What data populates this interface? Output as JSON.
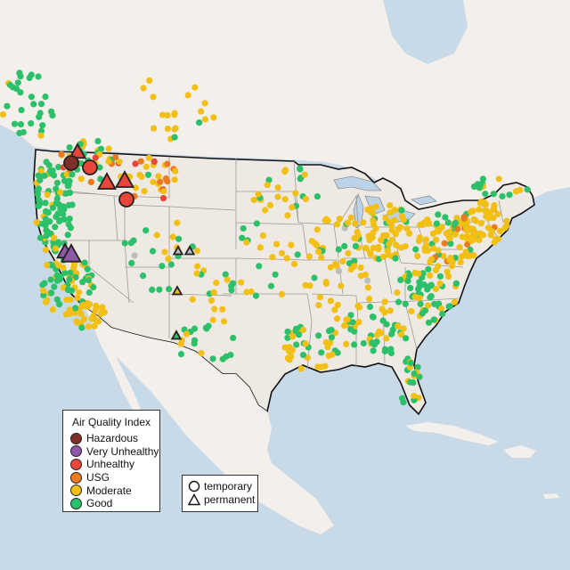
{
  "colors": {
    "ocean": "#c8d9e8",
    "land": "#efe9e4",
    "land_foreign": "#f3efeb",
    "lakes": "#bcd2e6",
    "border": "#111111",
    "state": "#9a9a9a",
    "no_data": "#bdbdbd"
  },
  "legend_aqi": {
    "title": "Air Quality Index",
    "items": [
      {
        "label": "Hazardous",
        "color": "#7e2f2a"
      },
      {
        "label": "Very Unhealthy",
        "color": "#8e58a8"
      },
      {
        "label": "Unhealthy",
        "color": "#e8463b"
      },
      {
        "label": "USG",
        "color": "#ec7a21"
      },
      {
        "label": "Moderate",
        "color": "#f2c015"
      },
      {
        "label": "Good",
        "color": "#2dc06a"
      }
    ]
  },
  "legend_type": {
    "items": [
      {
        "label": "temporary",
        "shape": "circle-icon"
      },
      {
        "label": "permanent",
        "shape": "triangle-icon"
      }
    ]
  }
}
